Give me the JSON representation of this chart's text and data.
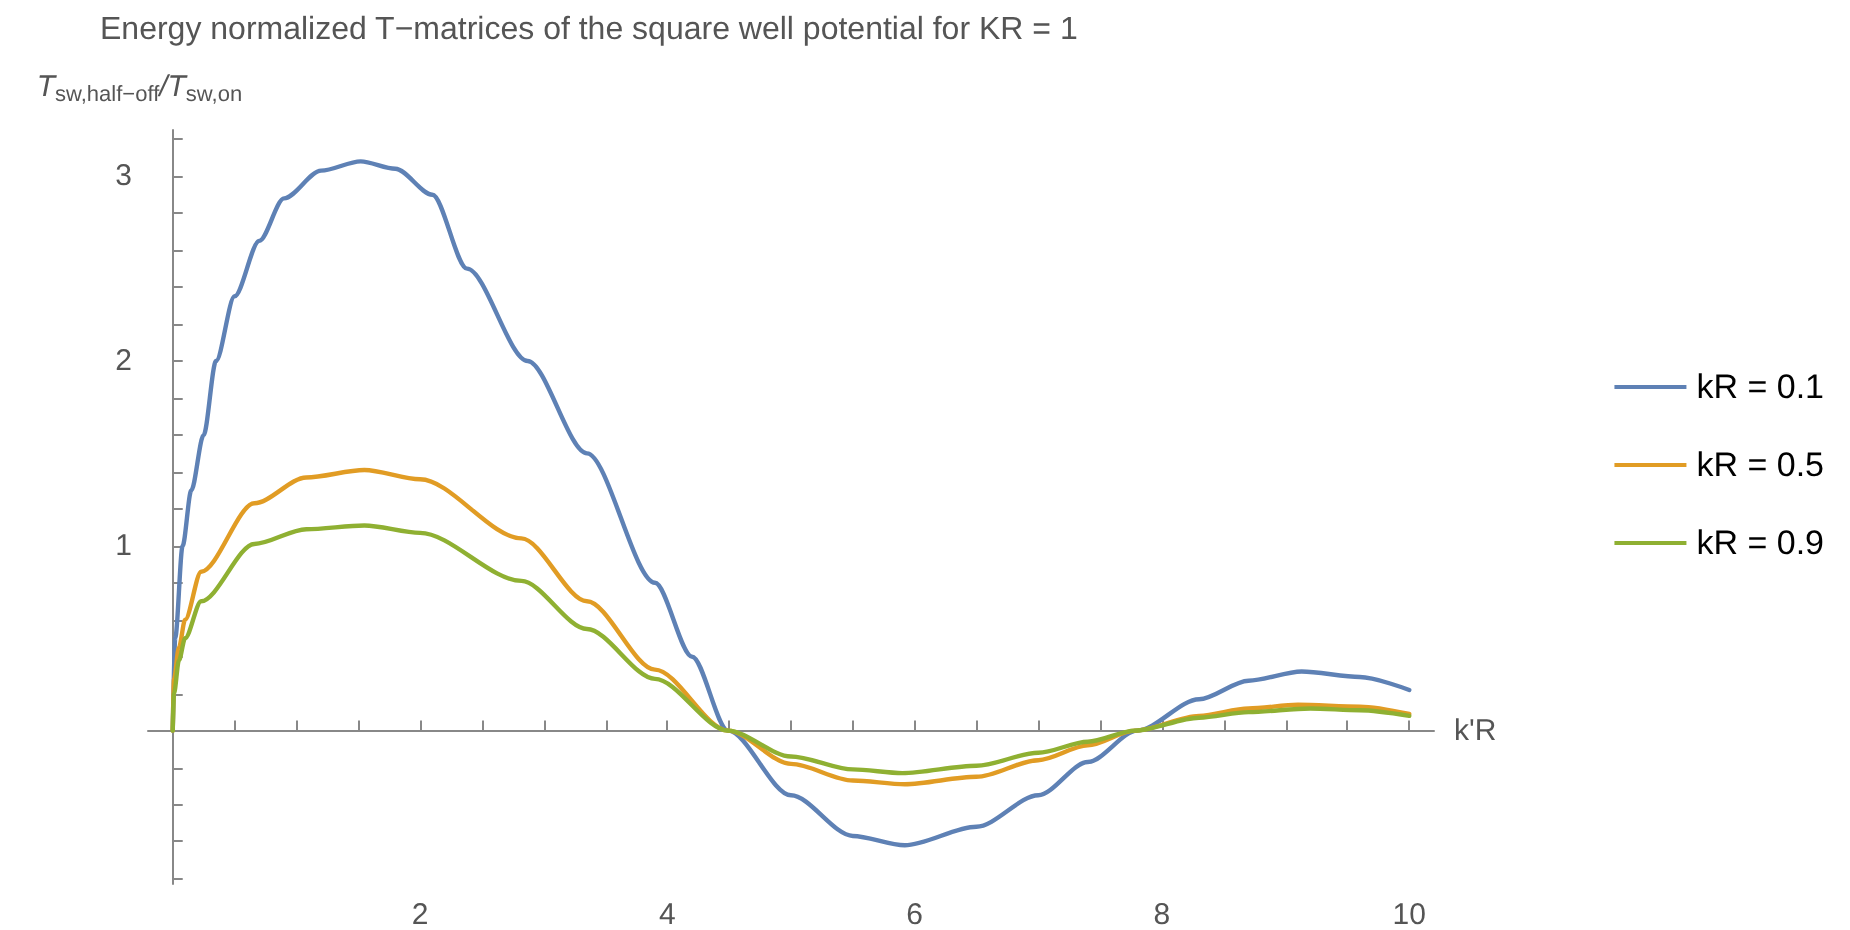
{
  "chart_data": {
    "type": "line",
    "title": "Energy normalized T−matrices of the square well potential for KR = 1",
    "xlabel": "k'R",
    "ylabel": "T$_{sw,half−off}$/T$_{sw,on}$",
    "xlim": [
      -0.2,
      10.2
    ],
    "ylim": [
      -0.83,
      3.25
    ],
    "xticks": [
      {
        "value": 0.5,
        "label": null
      },
      {
        "value": 1,
        "label": null
      },
      {
        "value": 1.5,
        "label": null
      },
      2,
      {
        "value": 2.5,
        "label": null
      },
      {
        "value": 3,
        "label": null
      },
      {
        "value": 3.5,
        "label": null
      },
      4,
      {
        "value": 4.5,
        "label": null
      },
      {
        "value": 5,
        "label": null
      },
      {
        "value": 5.5,
        "label": null
      },
      6,
      {
        "value": 6.5,
        "label": null
      },
      {
        "value": 7,
        "label": null
      },
      {
        "value": 7.5,
        "label": null
      },
      8,
      {
        "value": 8.5,
        "label": null
      },
      {
        "value": 9,
        "label": null
      },
      {
        "value": 9.5,
        "label": null
      },
      10
    ],
    "yticks": [
      {
        "value": -0.8,
        "label": null
      },
      {
        "value": -0.6,
        "label": null
      },
      {
        "value": -0.4,
        "label": null
      },
      {
        "value": -0.2,
        "label": null
      },
      {
        "value": 0.2,
        "label": null
      },
      {
        "value": 0.4,
        "label": null
      },
      {
        "value": 0.6,
        "label": null
      },
      {
        "value": 0.8,
        "label": null
      },
      1,
      {
        "value": 1.2,
        "label": null
      },
      {
        "value": 1.4,
        "label": null
      },
      {
        "value": 1.6,
        "label": null
      },
      {
        "value": 1.8,
        "label": null
      },
      2,
      {
        "value": 2.2,
        "label": null
      },
      {
        "value": 2.4,
        "label": null
      },
      {
        "value": 2.6,
        "label": null
      },
      {
        "value": 2.8,
        "label": null
      },
      3,
      {
        "value": 3.2,
        "label": null
      }
    ],
    "grid": false,
    "legend": "right",
    "marker": "none",
    "line_style": "solid",
    "series": [
      {
        "name": "kR = 0.1",
        "color": "#5e81b5",
        "x": [
          0,
          0.02,
          0.08,
          0.15,
          0.25,
          0.35,
          0.5,
          0.7,
          0.9,
          1.2,
          1.52,
          1.8,
          2.1,
          2.38,
          2.87,
          3.35,
          3.9,
          4.2,
          4.49,
          5.0,
          5.5,
          5.92,
          6.5,
          7.0,
          7.4,
          7.8,
          8.3,
          8.7,
          9.13,
          9.6,
          10
        ],
        "values": [
          0,
          0.5,
          1.0,
          1.3,
          1.6,
          2.0,
          2.35,
          2.65,
          2.88,
          3.03,
          3.08,
          3.04,
          2.9,
          2.5,
          2.0,
          1.5,
          0.8,
          0.4,
          0,
          -0.35,
          -0.57,
          -0.62,
          -0.52,
          -0.35,
          -0.17,
          0,
          0.17,
          0.27,
          0.32,
          0.29,
          0.22
        ]
      },
      {
        "name": "kR = 0.5",
        "color": "#e19c24",
        "x": [
          0,
          0.01,
          0.05,
          0.1,
          0.23,
          0.66,
          1.08,
          1.55,
          2.0,
          2.82,
          3.35,
          3.9,
          4.49,
          5.0,
          5.5,
          5.92,
          6.5,
          7.0,
          7.4,
          7.78,
          8.3,
          8.7,
          9.1,
          9.6,
          10
        ],
        "values": [
          0,
          0.28,
          0.45,
          0.6,
          0.86,
          1.23,
          1.37,
          1.41,
          1.36,
          1.04,
          0.7,
          0.33,
          0,
          -0.18,
          -0.27,
          -0.29,
          -0.25,
          -0.16,
          -0.08,
          0,
          0.08,
          0.12,
          0.14,
          0.13,
          0.09
        ]
      },
      {
        "name": "kR = 0.9",
        "color": "#8fb032",
        "x": [
          0,
          0.01,
          0.05,
          0.1,
          0.23,
          0.66,
          1.08,
          1.55,
          2.0,
          2.82,
          3.35,
          3.9,
          4.49,
          5.0,
          5.5,
          5.9,
          6.5,
          7.0,
          7.4,
          7.78,
          8.3,
          8.7,
          9.2,
          9.6,
          10
        ],
        "values": [
          0,
          0.2,
          0.38,
          0.5,
          0.7,
          1.01,
          1.09,
          1.11,
          1.07,
          0.81,
          0.55,
          0.28,
          0,
          -0.14,
          -0.21,
          -0.23,
          -0.19,
          -0.12,
          -0.06,
          0,
          0.07,
          0.1,
          0.12,
          0.11,
          0.08
        ]
      }
    ]
  }
}
